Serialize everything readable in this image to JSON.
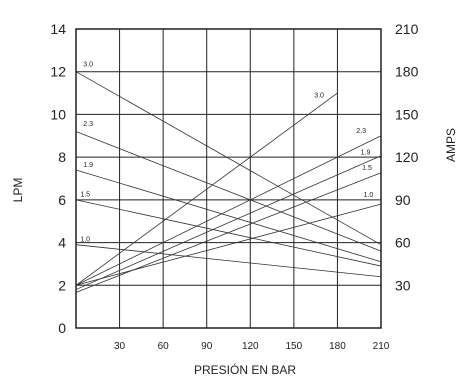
{
  "chart_data": {
    "type": "line",
    "title": "",
    "xlabel": "PRESIÓN EN BAR",
    "ylabel_left": "LPM",
    "ylabel_right": "AMPS",
    "x_range": [
      0,
      210
    ],
    "y_left_range": [
      0,
      14
    ],
    "y_right_range": [
      0,
      210
    ],
    "x_ticks": [
      30,
      60,
      90,
      120,
      150,
      180,
      210
    ],
    "y_left_ticks": [
      0,
      2,
      4,
      6,
      8,
      10,
      12,
      14
    ],
    "y_right_ticks": [
      30,
      60,
      90,
      120,
      150,
      180,
      210
    ],
    "grid": true,
    "flow_series_lpm": [
      {
        "name": "3.0",
        "x": [
          0,
          210
        ],
        "y": [
          12.0,
          3.9
        ]
      },
      {
        "name": "2.3",
        "x": [
          0,
          210
        ],
        "y": [
          9.2,
          3.6
        ]
      },
      {
        "name": "1.9",
        "x": [
          0,
          210
        ],
        "y": [
          7.4,
          3.1
        ]
      },
      {
        "name": "1.5",
        "x": [
          0,
          210
        ],
        "y": [
          6.0,
          2.9
        ]
      },
      {
        "name": "1.0",
        "x": [
          0,
          210
        ],
        "y": [
          3.9,
          2.4
        ]
      }
    ],
    "current_series_amps": [
      {
        "name": "3.0",
        "x": [
          0,
          180
        ],
        "y": [
          30,
          165
        ]
      },
      {
        "name": "2.3",
        "x": [
          0,
          210
        ],
        "y": [
          30,
          135
        ]
      },
      {
        "name": "1.9",
        "x": [
          0,
          210
        ],
        "y": [
          27,
          121
        ]
      },
      {
        "name": "1.5",
        "x": [
          0,
          210
        ],
        "y": [
          25,
          109
        ]
      },
      {
        "name": "1.0",
        "x": [
          0,
          210
        ],
        "y": [
          30,
          87
        ]
      }
    ],
    "flow_labels": [
      {
        "text": "3.0",
        "x": 5,
        "y": 12.25
      },
      {
        "text": "2.3",
        "x": 5,
        "y": 9.45
      },
      {
        "text": "1.9",
        "x": 5,
        "y": 7.55
      },
      {
        "text": "1.5",
        "x": 3,
        "y": 6.15
      },
      {
        "text": "1.0",
        "x": 3,
        "y": 4.05
      }
    ],
    "current_labels": [
      {
        "text": "3.0",
        "x": 164,
        "y": 162
      },
      {
        "text": "2.3",
        "x": 193,
        "y": 137
      },
      {
        "text": "1.9",
        "x": 196,
        "y": 122
      },
      {
        "text": "1.5",
        "x": 197,
        "y": 111
      },
      {
        "text": "1.0",
        "x": 198,
        "y": 92
      }
    ]
  }
}
